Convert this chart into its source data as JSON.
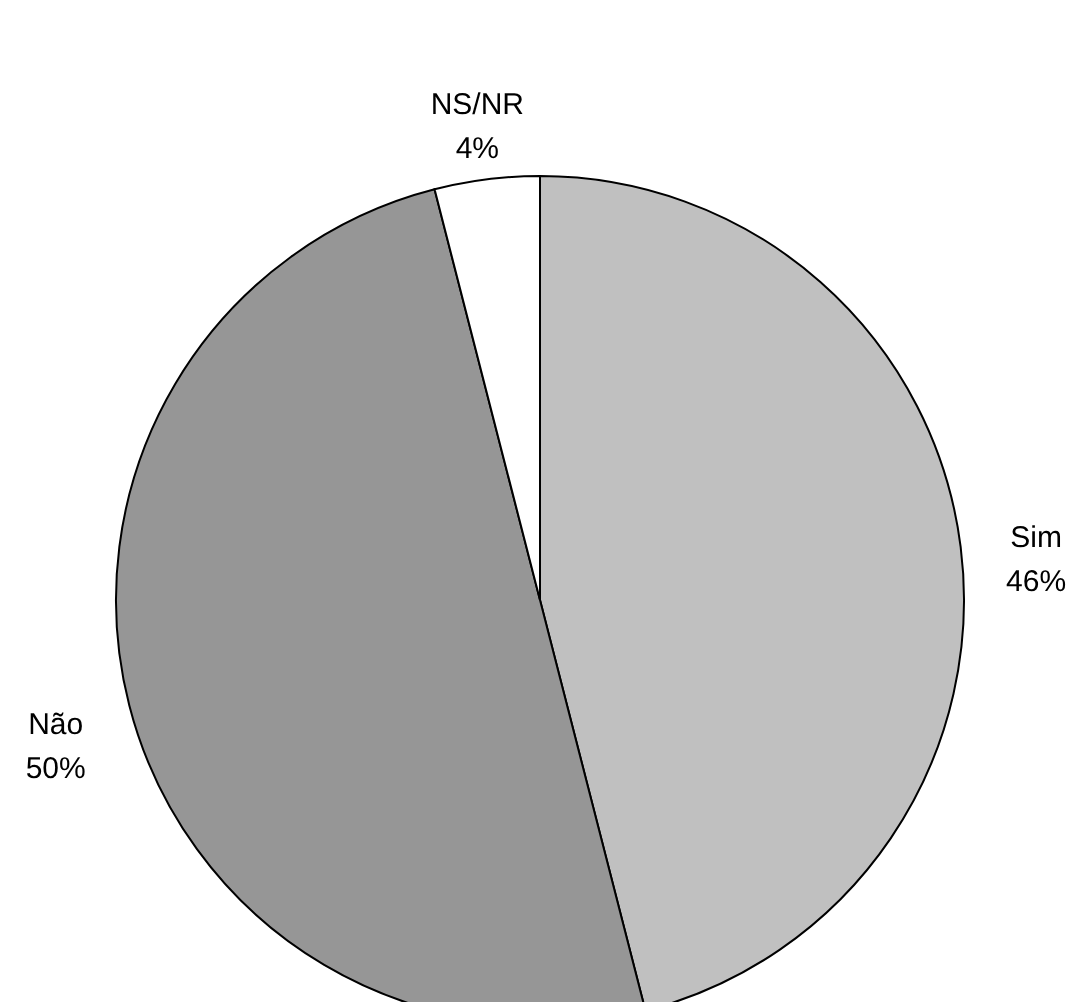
{
  "chart_data": {
    "type": "pie",
    "categories": [
      "Sim",
      "Não",
      "NS/NR"
    ],
    "values": [
      46,
      50,
      4
    ],
    "colors": [
      "#c0c0c0",
      "#969696",
      "#ffffff"
    ],
    "value_labels": [
      "46%",
      "50%",
      "4%"
    ]
  }
}
